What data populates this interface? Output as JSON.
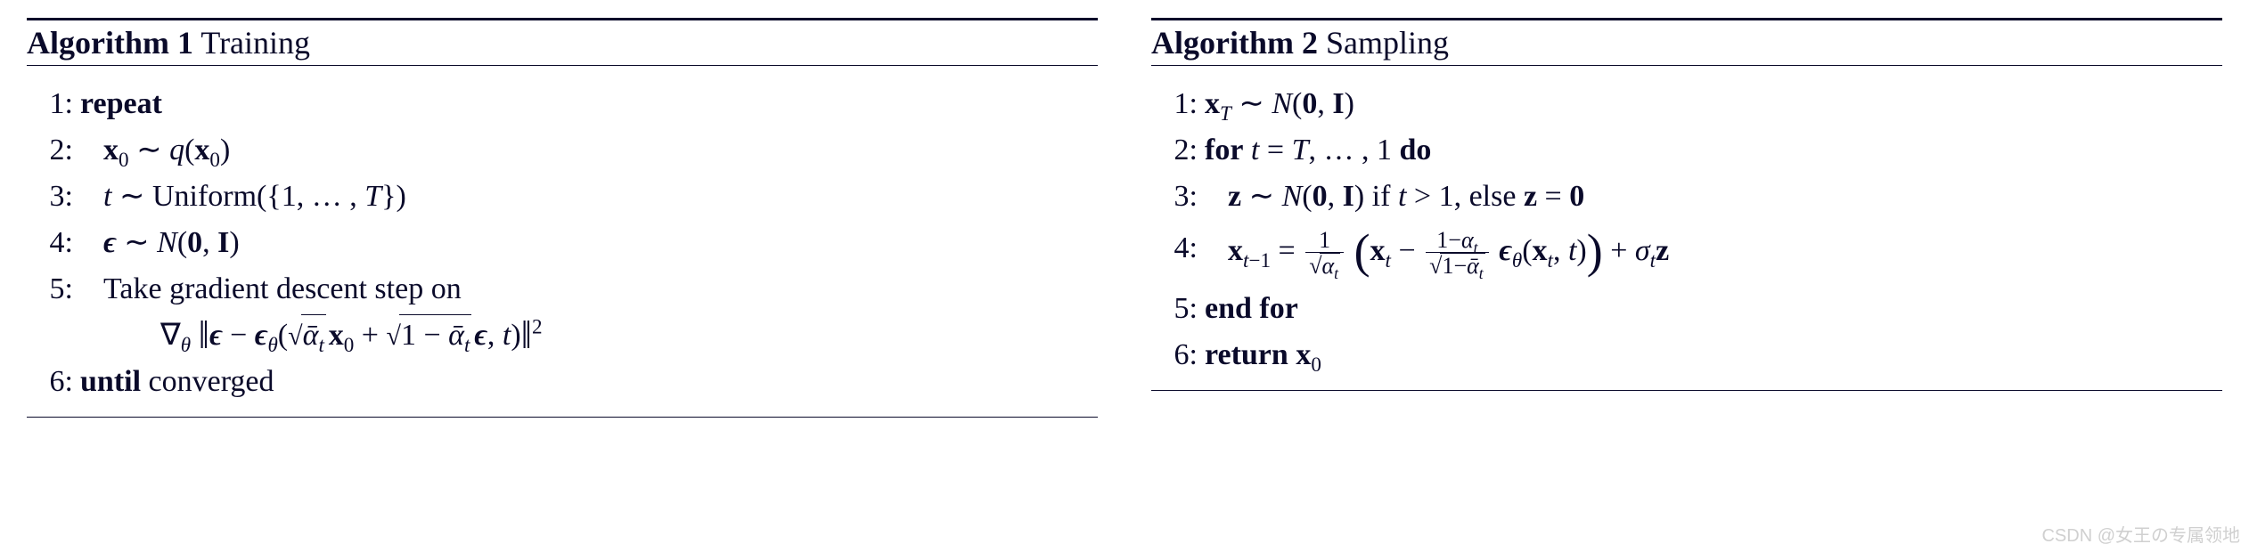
{
  "algo1": {
    "num": "Algorithm 1",
    "name": "Training",
    "lines": {
      "n1": "1:",
      "c1": "repeat",
      "n2": "2:",
      "n3": "3:",
      "n4": "4:",
      "n5": "5:",
      "c5": "Take gradient descent step on",
      "n6": "6:",
      "c6a": "until",
      "c6b": " converged"
    }
  },
  "algo2": {
    "num": "Algorithm 2",
    "name": "Sampling",
    "lines": {
      "n1": "1:",
      "n2": "2:",
      "c2a": "for",
      "c2b": "do",
      "n3": "3:",
      "n4": "4:",
      "n5": "5:",
      "c5": "end for",
      "n6": "6:",
      "c6a": "return"
    }
  },
  "watermark": "CSDN @女王の专属领地",
  "style": {
    "text_color": "#0a0a2a",
    "background": "#ffffff",
    "rule_width_heavy": 3,
    "rule_width_light": 1.5,
    "font_family": "Times New Roman",
    "base_fontsize": 34,
    "title_fontsize": 36
  }
}
